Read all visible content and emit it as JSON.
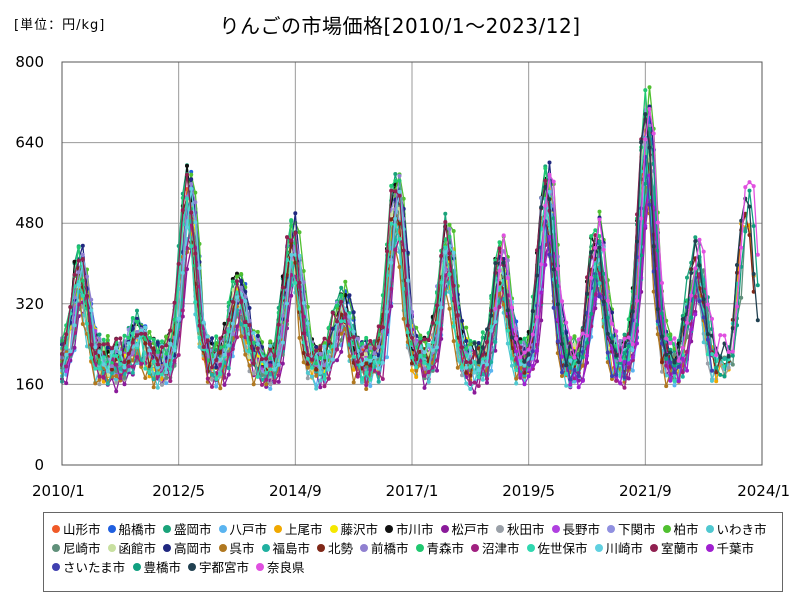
{
  "chart_data": {
    "type": "line",
    "title": "りんごの市場価格[2010/1～2023/12]",
    "unit_label": "[単位：円/kg]",
    "ylim": [
      0,
      800
    ],
    "yticks": [
      "0",
      "160",
      "320",
      "480",
      "640",
      "800"
    ],
    "xlim": [
      "2010/1",
      "2024/1"
    ],
    "xticks": [
      "2010/1",
      "2012/5",
      "2014/9",
      "2017/1",
      "2019/5",
      "2021/9",
      "2024/1"
    ],
    "grid": true,
    "legend_position": "bottom",
    "series": [
      {
        "name": "山形市",
        "color": "#f05a28"
      },
      {
        "name": "船橋市",
        "color": "#1f5fe0"
      },
      {
        "name": "盛岡市",
        "color": "#1aa37a"
      },
      {
        "name": "八戸市",
        "color": "#5ab4f0"
      },
      {
        "name": "上尾市",
        "color": "#f0a800"
      },
      {
        "name": "藤沢市",
        "color": "#f5e800"
      },
      {
        "name": "市川市",
        "color": "#111111"
      },
      {
        "name": "松戸市",
        "color": "#8a1a9a"
      },
      {
        "name": "秋田市",
        "color": "#9aa0a8"
      },
      {
        "name": "長野市",
        "color": "#b040e0"
      },
      {
        "name": "下関市",
        "color": "#9090e0"
      },
      {
        "name": "柏市",
        "color": "#50c030"
      },
      {
        "name": "いわき市",
        "color": "#50c8d0"
      },
      {
        "name": "尼崎市",
        "color": "#60907a"
      },
      {
        "name": "函館市",
        "color": "#c8e0a0"
      },
      {
        "name": "高岡市",
        "color": "#202880"
      },
      {
        "name": "呉市",
        "color": "#b07820"
      },
      {
        "name": "福島市",
        "color": "#20b0a0"
      },
      {
        "name": "北勢",
        "color": "#802818"
      },
      {
        "name": "前橋市",
        "color": "#9080d0"
      },
      {
        "name": "青森市",
        "color": "#20c870"
      },
      {
        "name": "沼津市",
        "color": "#a02080"
      },
      {
        "name": "佐世保市",
        "color": "#30d8b0"
      },
      {
        "name": "川崎市",
        "color": "#60d0e0"
      },
      {
        "name": "室蘭市",
        "color": "#902050"
      },
      {
        "name": "千葉市",
        "color": "#a020d0"
      },
      {
        "name": "さいたま市",
        "color": "#4040b0"
      },
      {
        "name": "豊橋市",
        "color": "#10a080"
      },
      {
        "name": "宇都宮市",
        "color": "#204050"
      },
      {
        "name": "奈良県",
        "color": "#e050e0"
      }
    ]
  }
}
